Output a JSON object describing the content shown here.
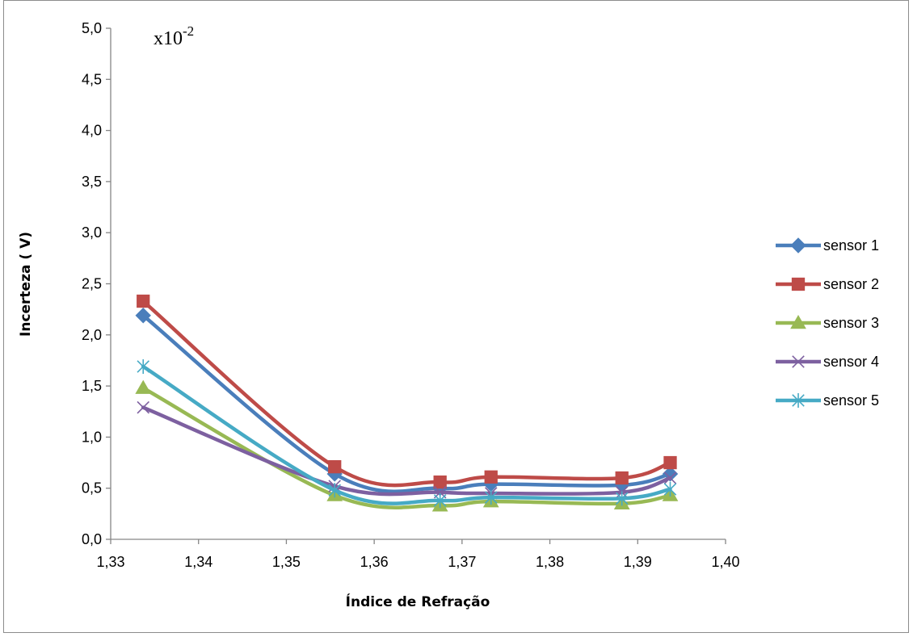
{
  "chart_data": {
    "type": "line",
    "title": "",
    "xlabel": "Índice de Refração",
    "ylabel": "Incerteza ( V)",
    "y_multiplier_label": {
      "base": "x10",
      "exponent": "-2"
    },
    "xlim": [
      1.33,
      1.4
    ],
    "ylim": [
      0.0,
      5.0
    ],
    "x_ticks": [
      "1,33",
      "1,34",
      "1,35",
      "1,36",
      "1,37",
      "1,38",
      "1,39",
      "1,40"
    ],
    "y_ticks": [
      "0,0",
      "0,5",
      "1,0",
      "1,5",
      "2,0",
      "2,5",
      "3,0",
      "3,5",
      "4,0",
      "4,5",
      "5,0"
    ],
    "x": [
      1.3337,
      1.3555,
      1.3675,
      1.3733,
      1.3882,
      1.3937
    ],
    "grid": false,
    "legend_position": "right",
    "smooth_lines": true,
    "series": [
      {
        "name": "sensor 1",
        "color": "#4a7ebb",
        "marker": "diamond",
        "values": [
          2.19,
          0.64,
          0.5,
          0.54,
          0.53,
          0.64
        ]
      },
      {
        "name": "sensor 2",
        "color": "#be4b48",
        "marker": "square",
        "values": [
          2.33,
          0.71,
          0.56,
          0.61,
          0.6,
          0.75
        ]
      },
      {
        "name": "sensor 3",
        "color": "#98b954",
        "marker": "triangle",
        "values": [
          1.48,
          0.43,
          0.33,
          0.37,
          0.35,
          0.43
        ]
      },
      {
        "name": "sensor 4",
        "color": "#7d60a0",
        "marker": "x",
        "values": [
          1.29,
          0.52,
          0.46,
          0.45,
          0.46,
          0.6
        ]
      },
      {
        "name": "sensor 5",
        "color": "#46aac5",
        "marker": "star",
        "values": [
          1.69,
          0.48,
          0.38,
          0.41,
          0.4,
          0.49
        ]
      }
    ]
  }
}
